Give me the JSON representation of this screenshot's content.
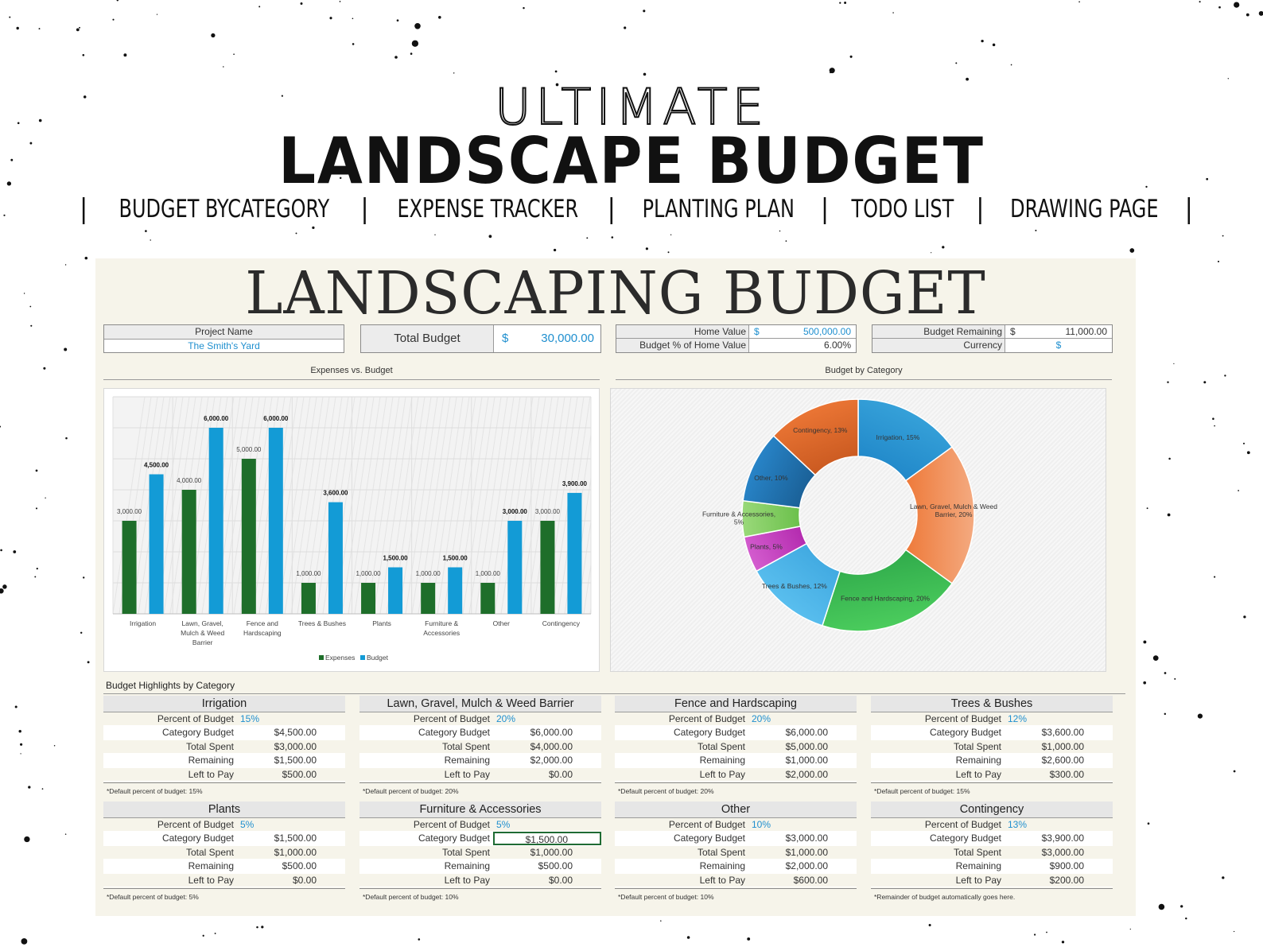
{
  "promo": {
    "title_top": "ULTIMATE",
    "title_main": "LANDSCAPE BUDGET",
    "nav": [
      "BUDGET BYCATEGORY",
      "EXPENSE TRACKER",
      "PLANTING PLAN",
      "TODO LIST",
      "DRAWING PAGE"
    ],
    "separator": "|"
  },
  "sheet": {
    "title": "LANDSCAPING BUDGET",
    "project": {
      "label": "Project Name",
      "value": "The Smith's Yard"
    },
    "total_budget": {
      "label": "Total Budget",
      "currency": "$",
      "value": "30,000.00"
    },
    "home": {
      "home_value_label": "Home Value",
      "home_value_currency": "$",
      "home_value": "500,000.00",
      "pct_label": "Budget % of Home Value",
      "pct_value": "6.00%"
    },
    "remaining": {
      "label": "Budget Remaining",
      "currency": "$",
      "value": "11,000.00",
      "currency_label": "Currency",
      "currency_value": "$"
    },
    "bar_chart_title": "Expenses vs. Budget",
    "donut_chart_title": "Budget by Category",
    "highlights_title": "Budget Highlights by Category",
    "row_labels": {
      "percent": "Percent of Budget",
      "category_budget": "Category Budget",
      "total_spent": "Total Spent",
      "remaining": "Remaining",
      "left_to_pay": "Left to Pay"
    },
    "cards": [
      {
        "name": "Irrigation",
        "percent": "15%",
        "category_budget": "$4,500.00",
        "total_spent": "$3,000.00",
        "remaining": "$1,500.00",
        "left_to_pay": "$500.00",
        "note": "*Default percent of budget: 15%"
      },
      {
        "name": "Lawn, Gravel, Mulch & Weed Barrier",
        "percent": "20%",
        "category_budget": "$6,000.00",
        "total_spent": "$4,000.00",
        "remaining": "$2,000.00",
        "left_to_pay": "$0.00",
        "note": "*Default percent of budget: 20%"
      },
      {
        "name": "Fence and Hardscaping",
        "percent": "20%",
        "category_budget": "$6,000.00",
        "total_spent": "$5,000.00",
        "remaining": "$1,000.00",
        "left_to_pay": "$2,000.00",
        "note": "*Default percent of budget: 20%"
      },
      {
        "name": "Trees & Bushes",
        "percent": "12%",
        "category_budget": "$3,600.00",
        "total_spent": "$1,000.00",
        "remaining": "$2,600.00",
        "left_to_pay": "$300.00",
        "note": "*Default percent of budget: 15%"
      },
      {
        "name": "Plants",
        "percent": "5%",
        "category_budget": "$1,500.00",
        "total_spent": "$1,000.00",
        "remaining": "$500.00",
        "left_to_pay": "$0.00",
        "note": "*Default percent of budget: 5%"
      },
      {
        "name": "Furniture & Accessories",
        "percent": "5%",
        "category_budget": "$1,500.00",
        "total_spent": "$1,000.00",
        "remaining": "$500.00",
        "left_to_pay": "$0.00",
        "note": "*Default percent of budget: 10%"
      },
      {
        "name": "Other",
        "percent": "10%",
        "category_budget": "$3,000.00",
        "total_spent": "$1,000.00",
        "remaining": "$2,000.00",
        "left_to_pay": "$600.00",
        "note": "*Default percent of budget: 10%"
      },
      {
        "name": "Contingency",
        "percent": "13%",
        "category_budget": "$3,900.00",
        "total_spent": "$3,000.00",
        "remaining": "$900.00",
        "left_to_pay": "$200.00",
        "note": "*Remainder of budget automatically goes here."
      }
    ]
  },
  "chart_data": [
    {
      "type": "bar",
      "title": "Expenses vs. Budget",
      "categories": [
        [
          "Irrigation"
        ],
        [
          "Lawn, Gravel,",
          "Mulch & Weed",
          "Barrier"
        ],
        [
          "Fence and",
          "Hardscaping"
        ],
        [
          "Trees & Bushes"
        ],
        [
          "Plants"
        ],
        [
          "Furniture &",
          "Accessories"
        ],
        [
          "Other"
        ],
        [
          "Contingency"
        ]
      ],
      "series": [
        {
          "name": "Expenses",
          "color": "#1e6e2a",
          "values": [
            3000,
            4000,
            5000,
            1000,
            1000,
            1000,
            1000,
            3000
          ],
          "labels": [
            "3,000.00",
            "4,000.00",
            "5,000.00",
            "1,000.00",
            "1,000.00",
            "1,000.00",
            "1,000.00",
            "3,000.00"
          ]
        },
        {
          "name": "Budget",
          "color": "#139bd6",
          "values": [
            4500,
            6000,
            6000,
            3600,
            1500,
            1500,
            3000,
            3900
          ],
          "labels": [
            "4,500.00",
            "6,000.00",
            "6,000.00",
            "3,600.00",
            "1,500.00",
            "1,500.00",
            "3,000.00",
            "3,900.00"
          ]
        }
      ],
      "ylim": [
        0,
        7000
      ],
      "grid": true,
      "legend": "bottom"
    },
    {
      "type": "pie",
      "title": "Budget by Category",
      "donut": true,
      "slices": [
        {
          "label": "Irrigation, 15%",
          "value": 15,
          "color": "#1f86c8",
          "color2": "#3aa6dc"
        },
        {
          "label": "Lawn, Gravel, Mulch & Weed Barrier, 20%",
          "value": 20,
          "color": "#ee7a3a",
          "color2": "#f4aa80"
        },
        {
          "label": "Fence and Hardscaping, 20%",
          "value": 20,
          "color": "#2ea84a",
          "color2": "#4dcf5e"
        },
        {
          "label": "Trees & Bushes, 12%",
          "value": 12,
          "color": "#3fa8e0",
          "color2": "#60c4f2"
        },
        {
          "label": "Plants, 5%",
          "value": 5,
          "color": "#b52db0",
          "color2": "#d55fd0"
        },
        {
          "label": "Furniture & Accessories, 5%",
          "value": 5,
          "color": "#6bc04b",
          "color2": "#9ad97a"
        },
        {
          "label": "Other, 10%",
          "value": 10,
          "color": "#1a5f95",
          "color2": "#2a8ad0"
        },
        {
          "label": "Contingency, 13%",
          "value": 13,
          "color": "#c8581f",
          "color2": "#f07a38"
        }
      ]
    }
  ]
}
